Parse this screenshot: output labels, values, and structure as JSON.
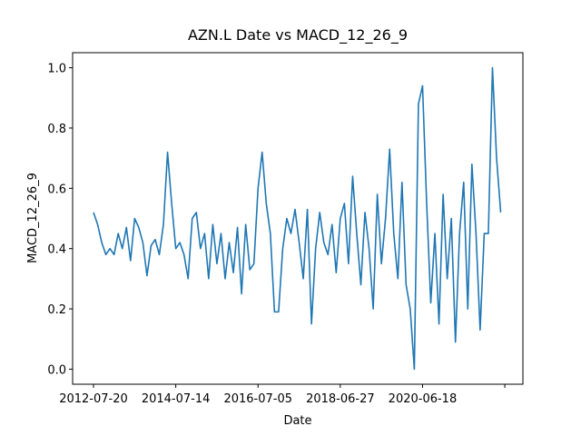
{
  "chart_data": {
    "type": "line",
    "title": "AZN.L Date vs MACD_12_26_9",
    "x_label": "Date",
    "y_label": "MACD_12_26_9",
    "x": [
      0,
      25,
      50,
      75,
      100,
      125,
      150,
      175,
      200,
      225,
      250,
      275,
      300,
      325,
      350,
      375,
      400,
      425,
      450,
      475,
      500,
      525,
      550,
      575,
      600,
      625,
      650,
      675,
      700,
      725,
      750,
      775,
      800,
      825,
      850,
      875,
      900,
      925,
      950,
      975,
      1000,
      1025,
      1050,
      1075,
      1100,
      1125,
      1150,
      1175,
      1200,
      1225,
      1250,
      1275,
      1300,
      1325,
      1350,
      1375,
      1400,
      1425,
      1450,
      1475,
      1500,
      1525,
      1550,
      1575,
      1600,
      1625,
      1650,
      1675,
      1700,
      1725,
      1750,
      1775,
      1800,
      1825,
      1850,
      1875,
      1900,
      1925,
      1950,
      1975,
      2000,
      2025,
      2050,
      2075,
      2100,
      2125,
      2150,
      2175,
      2200,
      2225,
      2250,
      2275,
      2300,
      2325,
      2350,
      2375,
      2400,
      2425,
      2450,
      2475
    ],
    "series": [
      {
        "name": "MACD_12_26_9",
        "color": "#1f77b4",
        "values": [
          0.52,
          0.48,
          0.42,
          0.38,
          0.4,
          0.38,
          0.45,
          0.4,
          0.47,
          0.36,
          0.5,
          0.47,
          0.42,
          0.31,
          0.41,
          0.43,
          0.38,
          0.48,
          0.72,
          0.55,
          0.4,
          0.42,
          0.38,
          0.3,
          0.5,
          0.52,
          0.4,
          0.45,
          0.3,
          0.48,
          0.35,
          0.45,
          0.3,
          0.42,
          0.32,
          0.47,
          0.25,
          0.48,
          0.33,
          0.35,
          0.6,
          0.72,
          0.55,
          0.45,
          0.19,
          0.19,
          0.4,
          0.5,
          0.45,
          0.53,
          0.42,
          0.3,
          0.53,
          0.15,
          0.4,
          0.52,
          0.42,
          0.38,
          0.48,
          0.32,
          0.5,
          0.55,
          0.35,
          0.64,
          0.45,
          0.28,
          0.52,
          0.4,
          0.2,
          0.58,
          0.35,
          0.5,
          0.73,
          0.45,
          0.3,
          0.62,
          0.28,
          0.2,
          0.0,
          0.88,
          0.94,
          0.55,
          0.22,
          0.45,
          0.15,
          0.58,
          0.3,
          0.5,
          0.09,
          0.45,
          0.62,
          0.2,
          0.68,
          0.45,
          0.13,
          0.45,
          0.45,
          1.0,
          0.7,
          0.52
        ]
      }
    ],
    "xlim": [
      -127,
      2610
    ],
    "xticks": [
      {
        "value": 0,
        "label": "2012-07-20"
      },
      {
        "value": 500,
        "label": "2014-07-14"
      },
      {
        "value": 1000,
        "label": "2016-07-05"
      },
      {
        "value": 1500,
        "label": "2018-06-27"
      },
      {
        "value": 2000,
        "label": "2020-06-18"
      },
      {
        "value": 2500,
        "label": null
      }
    ],
    "ylim": [
      -0.05,
      1.05
    ],
    "yticks": [
      {
        "value": 0,
        "label": "0.0"
      },
      {
        "value": 0.2,
        "label": "0.2"
      },
      {
        "value": 0.4,
        "label": "0.4"
      },
      {
        "value": 0.6,
        "label": "0.6"
      },
      {
        "value": 0.8,
        "label": "0.8"
      },
      {
        "value": 1,
        "label": "1.0"
      }
    ]
  }
}
